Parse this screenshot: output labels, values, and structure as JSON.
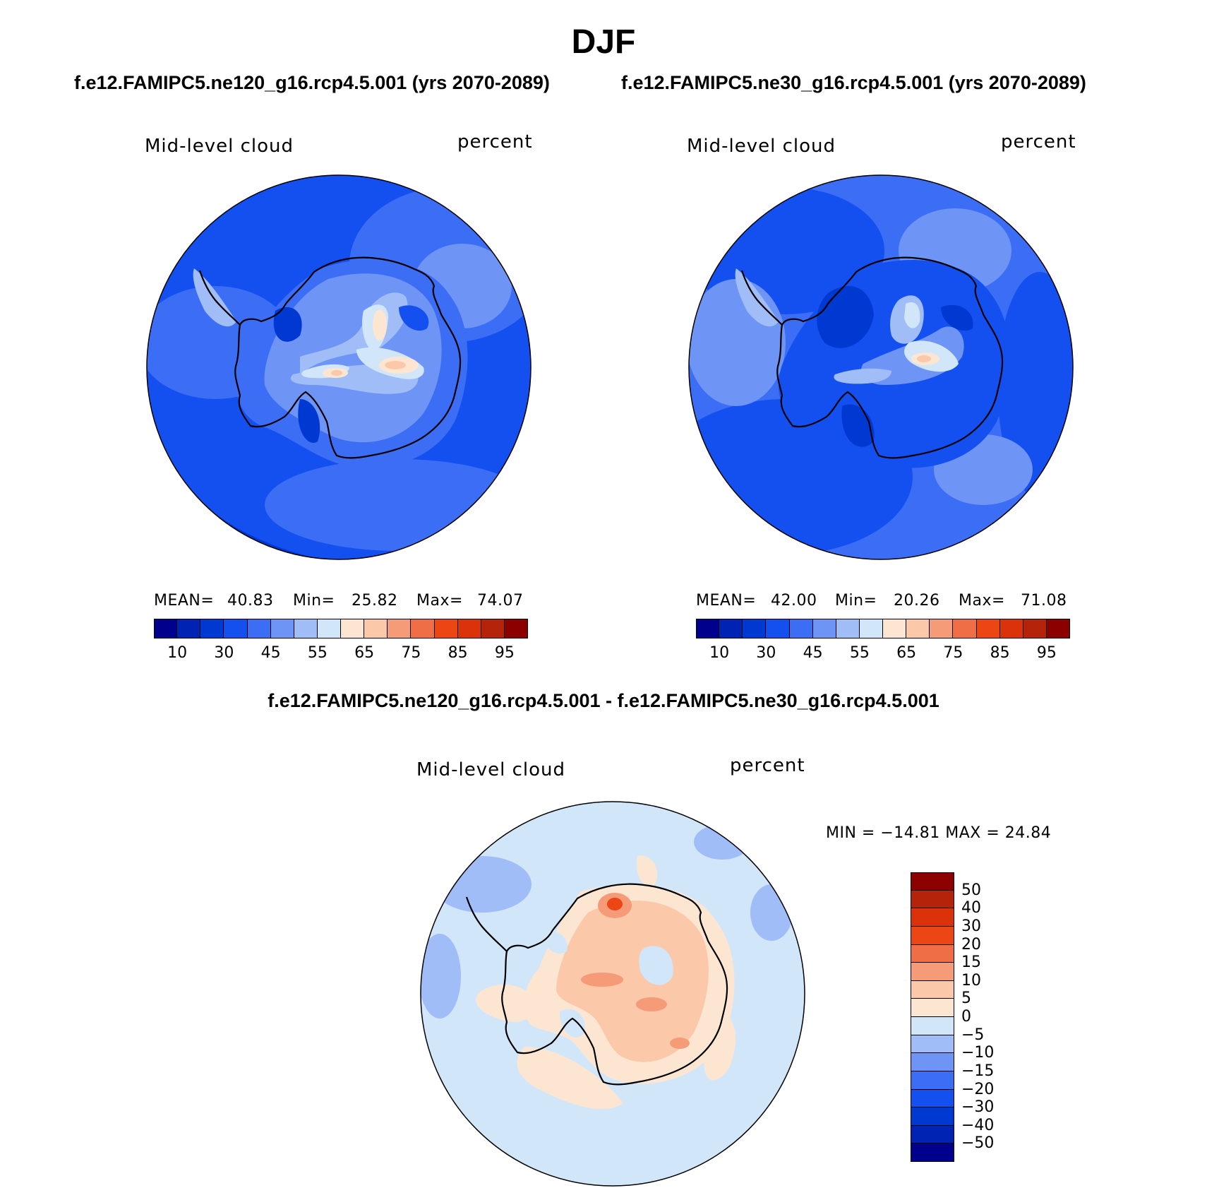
{
  "title": "DJF",
  "panels": [
    {
      "id": "ne120",
      "case_title": "f.e12.FAMIPC5.ne120_g16.rcp4.5.001 (yrs 2070-2089)",
      "variable": "Mid-level cloud",
      "units": "percent",
      "stats": {
        "mean_label": "MEAN=",
        "mean": "40.83",
        "min_label": "Min=",
        "min": "25.82",
        "max_label": "Max=",
        "max": "74.07"
      }
    },
    {
      "id": "ne30",
      "case_title": "f.e12.FAMIPC5.ne30_g16.rcp4.5.001 (yrs 2070-2089)",
      "variable": "Mid-level cloud",
      "units": "percent",
      "stats": {
        "mean_label": "MEAN=",
        "mean": "42.00",
        "min_label": "Min=",
        "min": "20.26",
        "max_label": "Max=",
        "max": "71.08"
      }
    }
  ],
  "colorbar_abs": {
    "colors": [
      "#00008c",
      "#0023b4",
      "#0038d2",
      "#1450f0",
      "#3c6ef5",
      "#6e94f5",
      "#a0bdf8",
      "#d2e6fa",
      "#fce6d2",
      "#fbc8aa",
      "#f59b78",
      "#f06e46",
      "#eb4614",
      "#dc320a",
      "#b4230a",
      "#8c0000"
    ],
    "tick_labels": [
      "10",
      "30",
      "45",
      "55",
      "65",
      "75",
      "85",
      "95"
    ]
  },
  "difference": {
    "title": "f.e12.FAMIPC5.ne120_g16.rcp4.5.001 - f.e12.FAMIPC5.ne30_g16.rcp4.5.001",
    "variable": "Mid-level cloud",
    "units": "percent",
    "stats_text": "MIN = −14.81  MAX =   24.84",
    "colorbar": {
      "colors": [
        "#8c0000",
        "#b4230a",
        "#dc320a",
        "#eb4614",
        "#f06e46",
        "#f59b78",
        "#fbc8aa",
        "#fce6d2",
        "#d2e6fa",
        "#a0bdf8",
        "#6e94f5",
        "#3c6ef5",
        "#1450f0",
        "#0038d2",
        "#0023b4",
        "#00008c"
      ],
      "tick_labels": [
        "50",
        "40",
        "30",
        "20",
        "15",
        "10",
        "5",
        "0",
        "−5",
        "−10",
        "−15",
        "−20",
        "−30",
        "−40",
        "−50"
      ]
    }
  },
  "map_colors": {
    "ocean_a": "#1450f0",
    "ocean_b": "#3c6ef5",
    "rim": "#0038d2",
    "land_low": "#6e94f5",
    "land_mid": "#a0bdf8",
    "land_high": "#d2e6fa",
    "warm1": "#fce6d2",
    "warm2": "#fbc8aa",
    "warm3": "#f59b78",
    "deep": "#0023b4",
    "diff_bg": "#d2e6fa",
    "diff_blue": "#a0bdf8",
    "diff_warm": "#fce6d2",
    "diff_warm2": "#fbc8aa",
    "diff_warm3": "#f59b78",
    "diff_hot": "#eb4614"
  }
}
